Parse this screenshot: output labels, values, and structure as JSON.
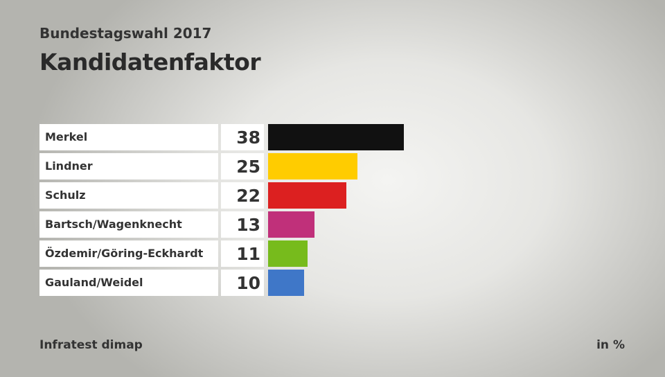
{
  "chart_data": {
    "type": "bar",
    "supertitle": "Bundestagswahl 2017",
    "title": "Kandidatenfaktor",
    "categories": [
      "Merkel",
      "Lindner",
      "Schulz",
      "Bartsch/Wagenknecht",
      "Özdemir/Göring-Eckhardt",
      "Gauland/Weidel"
    ],
    "values": [
      38,
      25,
      22,
      13,
      11,
      10
    ],
    "colors": [
      "#111111",
      "#ffcc00",
      "#dc2020",
      "#c0307a",
      "#77bb1c",
      "#3f77c8"
    ],
    "xlim": [
      0,
      38
    ],
    "source": "Infratest dimap",
    "unit": "in %"
  }
}
